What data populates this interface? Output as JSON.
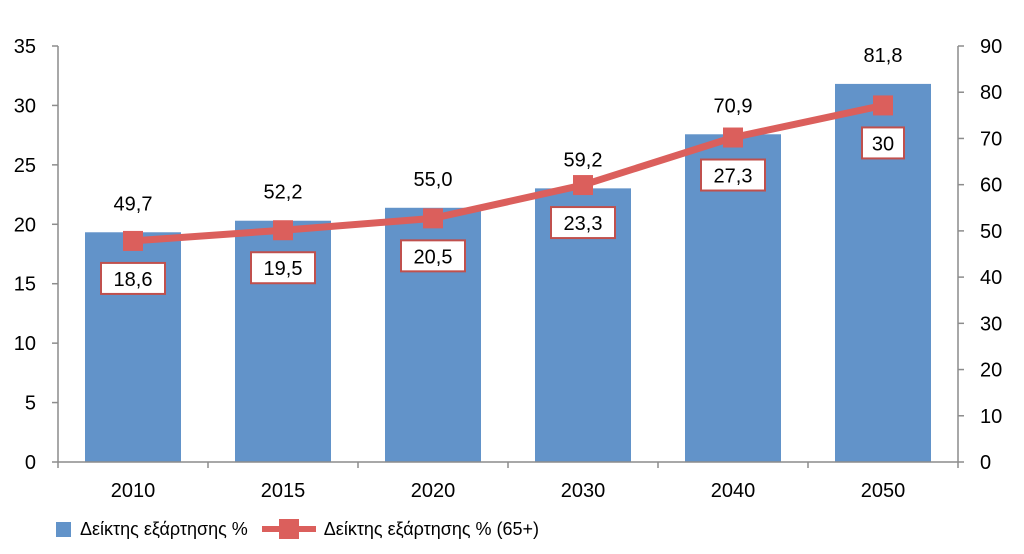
{
  "chart_data": {
    "type": "bar",
    "categories": [
      "2010",
      "2015",
      "2020",
      "2030",
      "2040",
      "2050"
    ],
    "series": [
      {
        "name": "Δείκτης εξάρτησης %",
        "type": "bar",
        "axis": "right",
        "values": [
          49.7,
          52.2,
          55.0,
          59.2,
          70.9,
          81.8
        ],
        "labels": [
          "49,7",
          "52,2",
          "55,0",
          "59,2",
          "70,9",
          "81,8"
        ],
        "color": "#6293c9"
      },
      {
        "name": "Δείκτης εξάρτησης % (65+)",
        "type": "line",
        "axis": "left",
        "values": [
          18.6,
          19.5,
          20.5,
          23.3,
          27.3,
          30
        ],
        "labels": [
          "18,6",
          "19,5",
          "20,5",
          "23,3",
          "27,3",
          "30"
        ],
        "color": "#db5f5c"
      }
    ],
    "y_left": {
      "range": [
        0,
        35
      ],
      "ticks": [
        "0",
        "5",
        "10",
        "15",
        "20",
        "25",
        "30",
        "35"
      ]
    },
    "y_right": {
      "range": [
        0,
        90
      ],
      "ticks": [
        "0",
        "10",
        "20",
        "30",
        "40",
        "50",
        "60",
        "70",
        "80",
        "90"
      ]
    },
    "grid": false,
    "legend_position": "bottom-left",
    "axis_color": "#8c8c8c"
  }
}
